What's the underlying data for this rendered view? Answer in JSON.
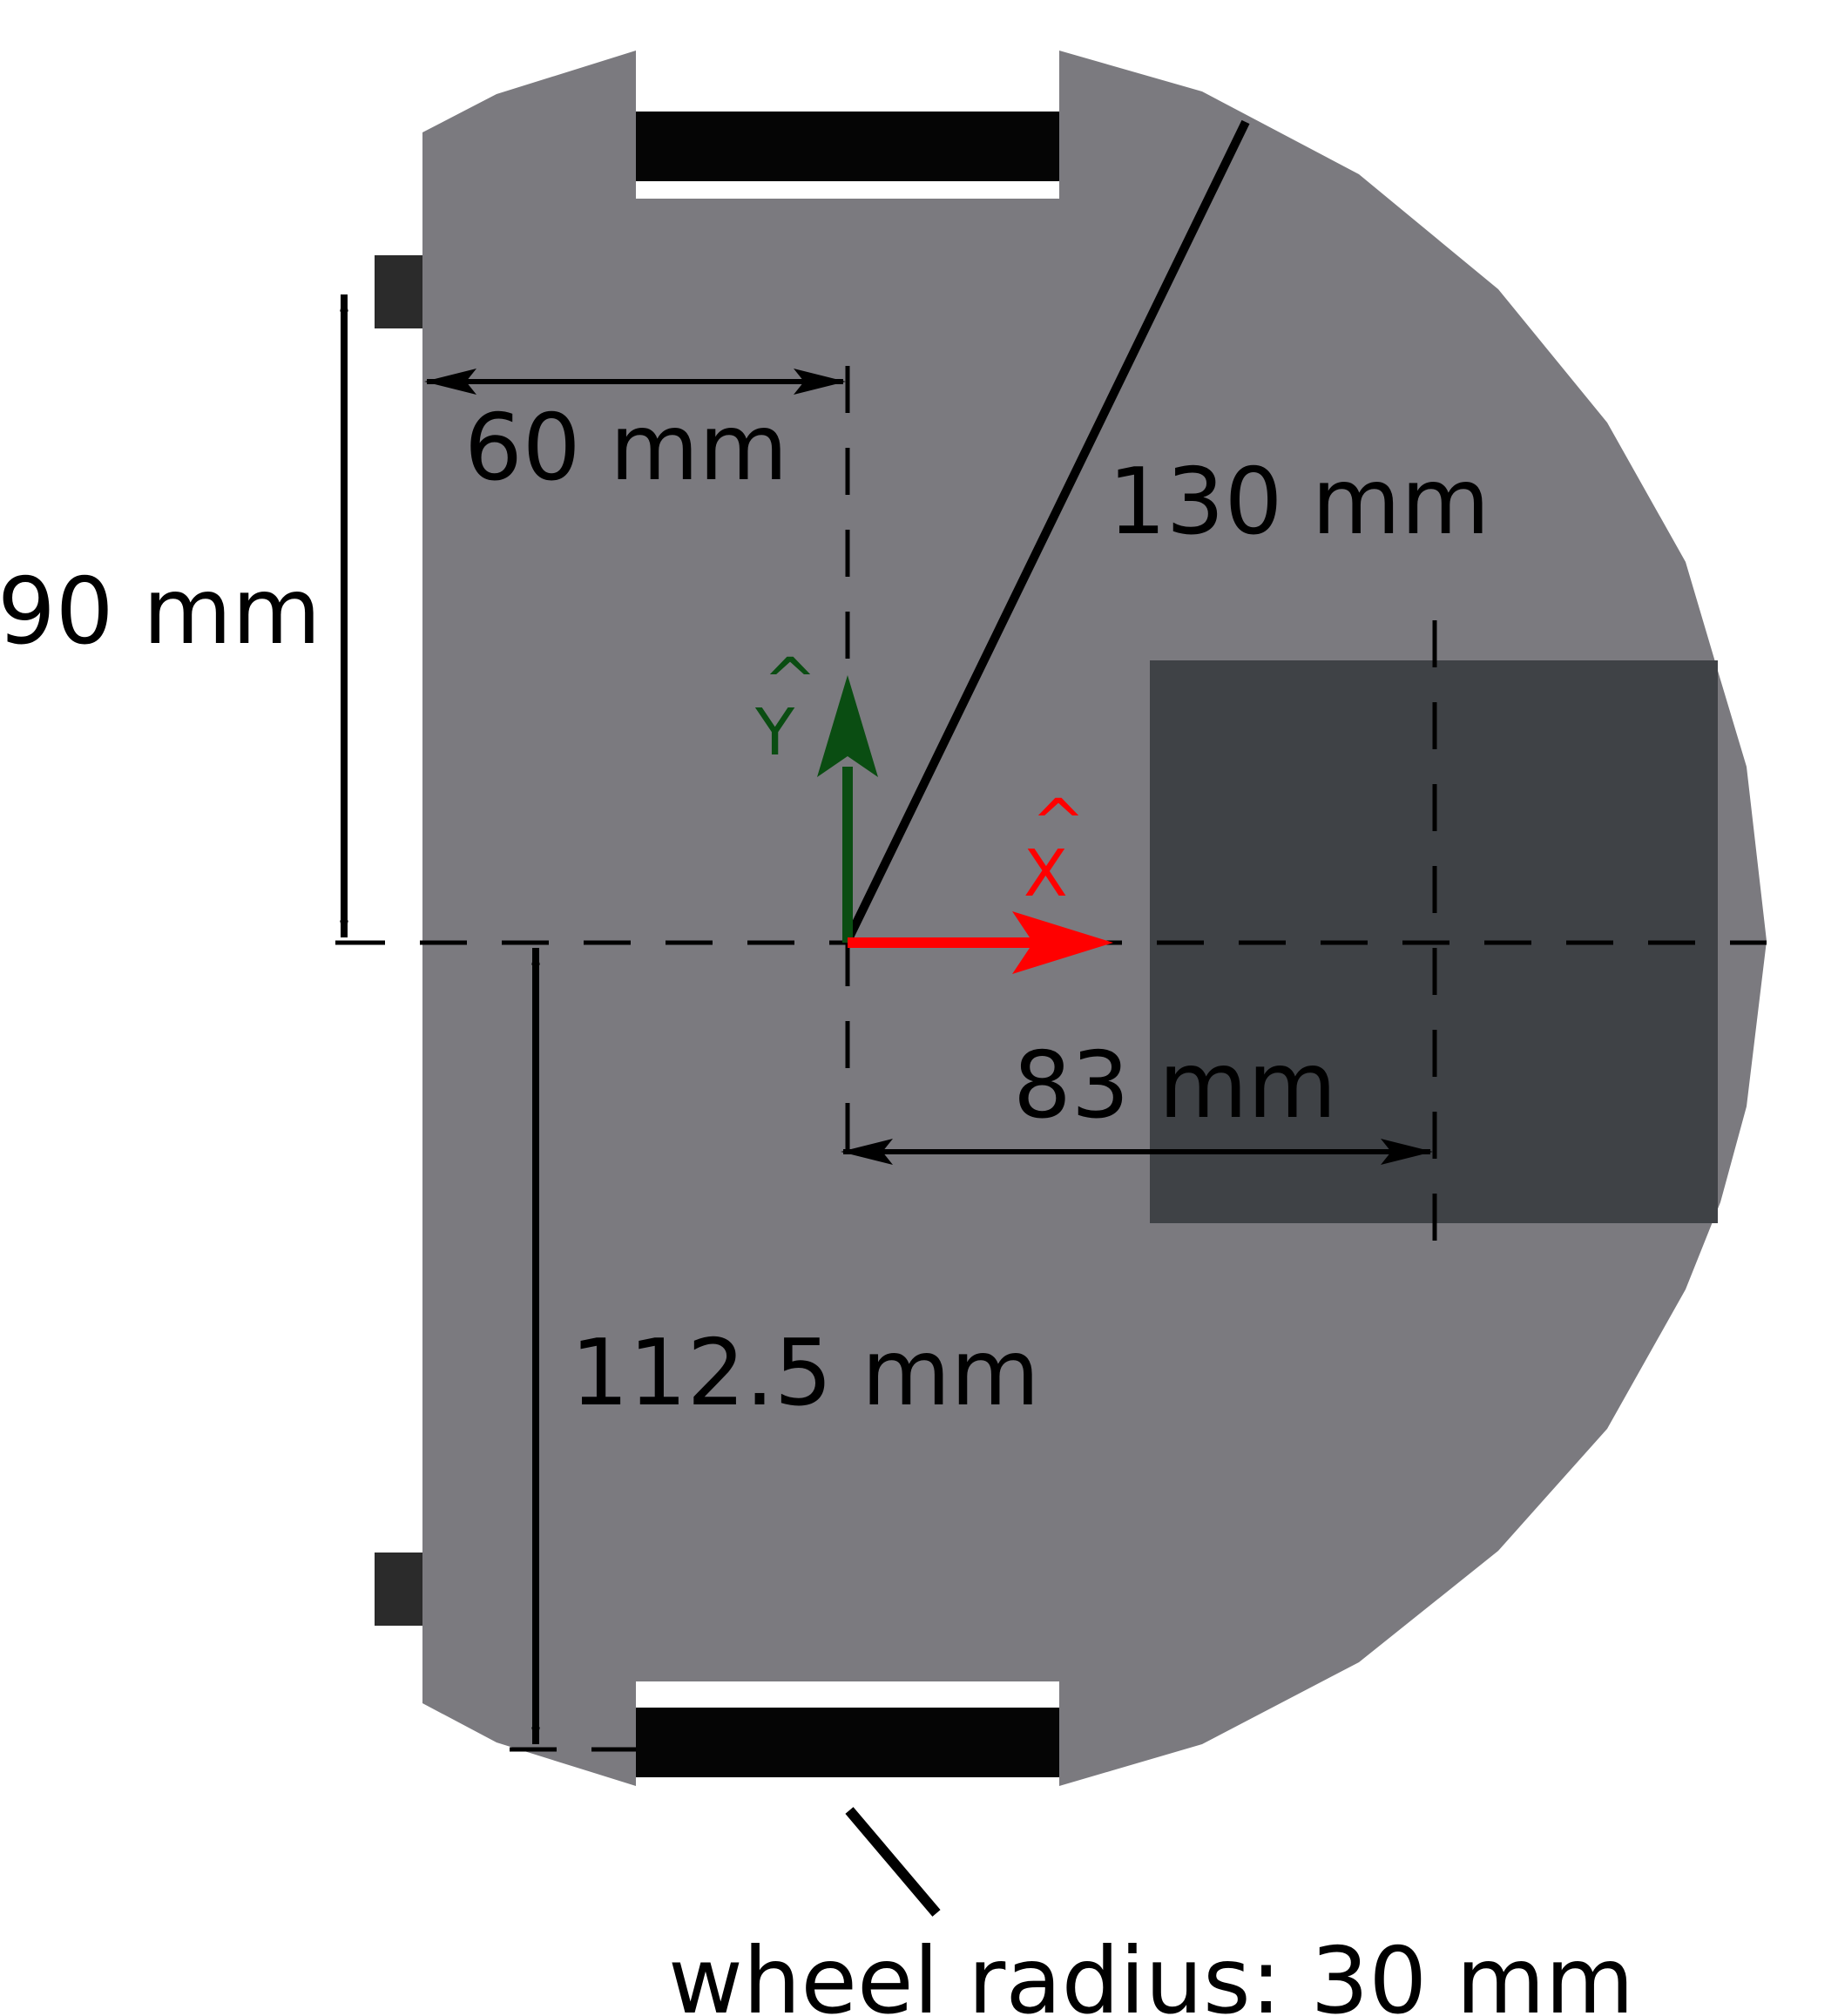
{
  "labels": {
    "dim_60": "60 mm",
    "dim_90": "90 mm",
    "dim_130": "130 mm",
    "dim_83": "83 mm",
    "dim_112": "112.5 mm",
    "wheel_radius": "wheel radius: 30 mm",
    "axis_y": "Y",
    "axis_x": "X",
    "hat": "^"
  },
  "colors": {
    "body": "#7b7a7f",
    "sensor": "#3f4246",
    "tab": "#2b2b2b",
    "wheel": "#050505",
    "line": "#000000",
    "axis_x": "#ff0000",
    "axis_y": "#0a4d12"
  }
}
